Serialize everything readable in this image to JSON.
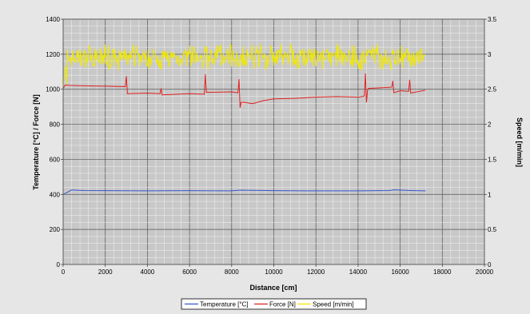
{
  "chart_data": {
    "type": "line",
    "xlabel": "Distance [cm]",
    "ylabel_left": "Temperature [°C] / Force [N]",
    "ylabel_right": "Speed [m/min]",
    "xlim": [
      0,
      20000
    ],
    "ylim_left": [
      0,
      1400
    ],
    "ylim_right": [
      0,
      3.5
    ],
    "x_ticks": [
      "0",
      "2000",
      "4000",
      "6000",
      "8000",
      "10000",
      "12000",
      "14000",
      "16000",
      "18000",
      "20000"
    ],
    "y_left_ticks": [
      "0",
      "200",
      "400",
      "600",
      "800",
      "1000",
      "1200",
      "1400"
    ],
    "y_right_ticks": [
      "0",
      "0.5",
      "1",
      "1.5",
      "2",
      "2.5",
      "3",
      "3.5"
    ],
    "grid": true,
    "legend_position": "bottom-center",
    "colors": {
      "plot_bg": "#c8c8c8",
      "temperature": "#3355cc",
      "force": "#e02020",
      "speed": "#f0e800"
    },
    "series": [
      {
        "name": "Temperature [°C]",
        "axis": "left",
        "x": [
          0,
          200,
          400,
          1000,
          2000,
          4000,
          6000,
          8000,
          8400,
          10000,
          12000,
          14000,
          15500,
          15700,
          16500,
          17200
        ],
        "values": [
          400,
          412,
          425,
          422,
          421,
          420,
          421,
          420,
          424,
          421,
          420,
          420,
          422,
          426,
          422,
          420
        ]
      },
      {
        "name": "Force [N]",
        "axis": "left",
        "x": [
          0,
          100,
          300,
          1000,
          2000,
          2950,
          3000,
          3050,
          4000,
          4600,
          4650,
          4700,
          6000,
          6700,
          6750,
          6800,
          8000,
          8300,
          8350,
          8400,
          8450,
          8600,
          9000,
          9500,
          10000,
          11000,
          12000,
          13000,
          14000,
          14200,
          14300,
          14350,
          14400,
          14450,
          14500,
          15000,
          15600,
          15650,
          15700,
          16000,
          16400,
          16450,
          16500,
          17200
        ],
        "values": [
          1005,
          1025,
          1022,
          1020,
          1018,
          1015,
          1075,
          975,
          978,
          975,
          1005,
          968,
          975,
          972,
          1085,
          982,
          985,
          980,
          1058,
          895,
          925,
          925,
          918,
          935,
          945,
          948,
          955,
          958,
          955,
          958,
          962,
          1090,
          925,
          995,
          1005,
          1008,
          1012,
          1048,
          980,
          992,
          988,
          1055,
          978,
          995
        ]
      },
      {
        "name": "Speed [m/min]",
        "axis": "right",
        "x": [
          0,
          17200
        ],
        "values": [
          2.95,
          2.95
        ],
        "band": [
          2.77,
          3.15
        ]
      }
    ]
  }
}
